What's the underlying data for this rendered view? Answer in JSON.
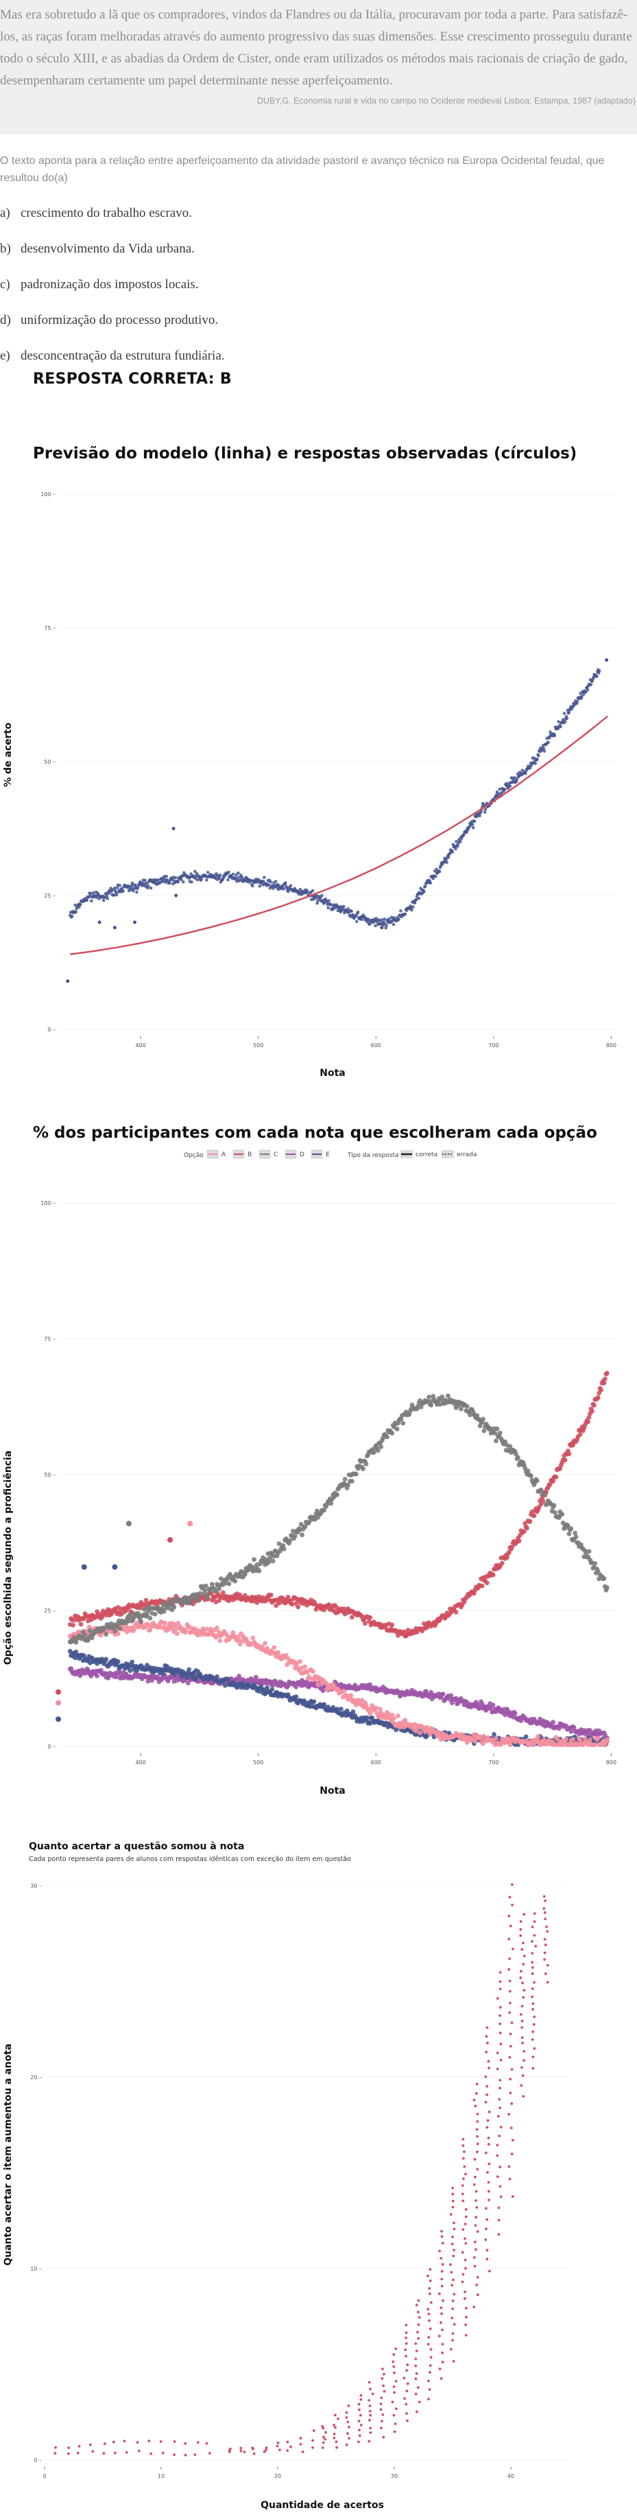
{
  "question": {
    "quote": "Mas era sobretudo a lã que os compradores, vindos da Flandres ou da Itália, procuravam por toda a parte. Para satisfazê-los, as raças foram melhoradas através do aumento progressivo das suas dimensões. Esse crescimento prosseguiu durante todo o século XIII, e as abadias da Ordem de Cister, onde eram utilizados os métodos mais racionais de criação de gado, desempenharam certamente um papel determinante nesse aperfeiçoamento.",
    "source": "DUBY,G. Economia rural e vida no campo no Ocidente medieval Lisboa: Estampa, 1987 (adaptado)",
    "stem": "O texto aponta para a relação entre aperfeiçoamento da atividade pastoril e avanço técnico na Europa Ocidental feudal, que resultou do(a)",
    "options": [
      {
        "letter": "a)",
        "text": "crescimento do trabalho escravo."
      },
      {
        "letter": "b)",
        "text": "desenvolvimento da Vida urbana."
      },
      {
        "letter": "c)",
        "text": "padronização dos impostos locais."
      },
      {
        "letter": "d)",
        "text": "uniformização do processo produtivo."
      },
      {
        "letter": "e)",
        "text": "desconcentração da estrutura fundiária."
      }
    ],
    "answer": "RESPOSTA CORRETA: B"
  },
  "colors": {
    "A": "#f4909f",
    "B": "#d0505f",
    "C": "#7c7c7c",
    "D": "#9d56a8",
    "E": "#46568f",
    "observed": "#46568f",
    "model_line": "#d0505f"
  },
  "chart_data": [
    {
      "type": "scatter",
      "title": "Previsão do modelo (linha) e respostas observadas (círculos)",
      "xlabel": "Nota",
      "ylabel": "% de acerto",
      "xlim": [
        330,
        805
      ],
      "ylim": [
        0,
        100
      ],
      "xticks": [
        400,
        500,
        600,
        700,
        800
      ],
      "yticks": [
        0,
        25,
        50,
        75,
        100
      ],
      "ytick_labels": [
        "0 –",
        "25 –",
        "50 –",
        "75 –",
        "100 –"
      ],
      "observed_points": [
        [
          338,
          9
        ],
        [
          340,
          21
        ],
        [
          350,
          24
        ],
        [
          360,
          25
        ],
        [
          370,
          25
        ],
        [
          380,
          26
        ],
        [
          390,
          26.5
        ],
        [
          400,
          27
        ],
        [
          410,
          27.5
        ],
        [
          420,
          28
        ],
        [
          430,
          28
        ],
        [
          440,
          28.5
        ],
        [
          450,
          28.5
        ],
        [
          460,
          28.5
        ],
        [
          470,
          28.5
        ],
        [
          480,
          28.5
        ],
        [
          490,
          28
        ],
        [
          500,
          27.5
        ],
        [
          510,
          27
        ],
        [
          520,
          26.5
        ],
        [
          530,
          26
        ],
        [
          540,
          25.5
        ],
        [
          550,
          24.5
        ],
        [
          560,
          23.5
        ],
        [
          570,
          22.5
        ],
        [
          580,
          21.5
        ],
        [
          590,
          20.5
        ],
        [
          600,
          20
        ],
        [
          610,
          20
        ],
        [
          620,
          21
        ],
        [
          630,
          23
        ],
        [
          640,
          26
        ],
        [
          650,
          29
        ],
        [
          660,
          32
        ],
        [
          670,
          35
        ],
        [
          680,
          38
        ],
        [
          690,
          41
        ],
        [
          700,
          43
        ],
        [
          710,
          45
        ],
        [
          720,
          47
        ],
        [
          730,
          49
        ],
        [
          740,
          52
        ],
        [
          750,
          55
        ],
        [
          760,
          58
        ],
        [
          796,
          69
        ],
        [
          365,
          20
        ],
        [
          378,
          19
        ],
        [
          395,
          20
        ],
        [
          428,
          37.5
        ],
        [
          430,
          25
        ],
        [
          570,
          22
        ],
        [
          605,
          19
        ]
      ],
      "model_curve": [
        [
          340,
          14
        ],
        [
          360,
          14.6
        ],
        [
          380,
          15.3
        ],
        [
          400,
          16.1
        ],
        [
          420,
          17
        ],
        [
          440,
          18
        ],
        [
          460,
          19.1
        ],
        [
          480,
          20.3
        ],
        [
          500,
          21.6
        ],
        [
          520,
          23
        ],
        [
          540,
          24.6
        ],
        [
          560,
          26.3
        ],
        [
          580,
          28.1
        ],
        [
          600,
          30.1
        ],
        [
          620,
          32.3
        ],
        [
          640,
          34.6
        ],
        [
          660,
          37.1
        ],
        [
          680,
          39.8
        ],
        [
          700,
          42.6
        ],
        [
          720,
          45.6
        ],
        [
          740,
          48.8
        ],
        [
          760,
          52.1
        ],
        [
          780,
          55.5
        ],
        [
          797,
          58.5
        ]
      ]
    },
    {
      "type": "scatter",
      "title": "% dos participantes com cada nota que escolheram cada opção",
      "xlabel": "Nota",
      "ylabel": "Opção escolhida segundo a proficiência",
      "xlim": [
        330,
        805
      ],
      "ylim": [
        0,
        100
      ],
      "xticks": [
        400,
        500,
        600,
        700,
        800
      ],
      "yticks": [
        0,
        25,
        50,
        75,
        100
      ],
      "ytick_labels": [
        "0 –",
        "25 –",
        "50 –",
        "75 –",
        "100 –"
      ],
      "legend": {
        "option_title": "Opção",
        "option_labels": [
          "A",
          "B",
          "C",
          "D",
          "E"
        ],
        "type_title": "Tipo da resposta",
        "type_labels": [
          "correta",
          "errada"
        ]
      },
      "x": [
        340,
        360,
        380,
        400,
        420,
        440,
        460,
        480,
        500,
        520,
        540,
        560,
        580,
        600,
        620,
        640,
        660,
        680,
        700,
        720,
        740,
        760,
        780,
        797
      ],
      "series": [
        {
          "name": "A",
          "values": [
            20,
            21,
            21.5,
            22,
            22,
            21.5,
            21,
            20,
            18.5,
            16.5,
            14,
            11,
            8.5,
            6.5,
            4.5,
            3,
            2,
            1.5,
            1,
            1,
            0.8,
            0.5,
            0.5,
            0.5
          ]
        },
        {
          "name": "B",
          "values": [
            23,
            24,
            25,
            26,
            26.5,
            27,
            27.5,
            27.5,
            27,
            27,
            26.5,
            25.5,
            24.5,
            22.5,
            21,
            21.5,
            24,
            28,
            32,
            38,
            45,
            53,
            60,
            69
          ]
        },
        {
          "name": "C",
          "values": [
            19,
            21,
            22.5,
            24,
            25.5,
            27,
            29,
            31,
            33.5,
            36.5,
            40.5,
            45,
            50,
            55,
            60,
            63.5,
            64,
            61.5,
            58,
            53,
            47,
            41,
            35,
            29
          ]
        },
        {
          "name": "D",
          "values": [
            14,
            13.5,
            13,
            13,
            12.5,
            12.5,
            12,
            12,
            12,
            11.5,
            11.5,
            11,
            11,
            10.5,
            10,
            9.5,
            9,
            8,
            7,
            5.5,
            4.5,
            3.5,
            2.5,
            2
          ]
        },
        {
          "name": "E",
          "values": [
            17,
            16,
            15,
            14.5,
            14,
            13.5,
            12.5,
            11.5,
            10.5,
            9.5,
            8,
            7,
            5.5,
            4.5,
            3.5,
            2.5,
            2,
            1.5,
            1.2,
            1,
            1,
            1,
            1,
            1
          ]
        }
      ],
      "outliers": [
        {
          "series": "C",
          "x": 390,
          "y": 41
        },
        {
          "series": "E",
          "x": 378,
          "y": 33
        },
        {
          "series": "B",
          "x": 425,
          "y": 38
        },
        {
          "series": "A",
          "x": 442,
          "y": 41
        },
        {
          "series": "E",
          "x": 352,
          "y": 33
        },
        {
          "series": "B",
          "x": 330,
          "y": 10
        },
        {
          "series": "E",
          "x": 330,
          "y": 5
        },
        {
          "series": "A",
          "x": 330,
          "y": 8
        }
      ]
    },
    {
      "type": "scatter",
      "title": "Quanto acertar a questão somou à nota",
      "subtitle": "Cada ponto representa pares de alunos com respostas idênticas com exceção do item em questão",
      "xlabel": "Quantidade de acertos",
      "ylabel": "Quanto acertar o item aumentou a anota",
      "xlim": [
        0,
        45
      ],
      "ylim": [
        0,
        31
      ],
      "xticks": [
        0,
        10,
        20,
        30,
        40
      ],
      "yticks": [
        0,
        10,
        20,
        30
      ],
      "ytick_labels": [
        "0 –",
        "10 –",
        "20 –",
        "30 –"
      ],
      "bands": [
        {
          "x": 1,
          "ymin": 0.3,
          "ymax": 0.6
        },
        {
          "x": 2,
          "ymin": 0.3,
          "ymax": 0.7
        },
        {
          "x": 3,
          "ymin": 0.3,
          "ymax": 0.7
        },
        {
          "x": 4,
          "ymin": 0.4,
          "ymax": 0.8
        },
        {
          "x": 5,
          "ymin": 0.4,
          "ymax": 0.8
        },
        {
          "x": 6,
          "ymin": 0.4,
          "ymax": 0.9
        },
        {
          "x": 7,
          "ymin": 0.4,
          "ymax": 1.0
        },
        {
          "x": 8,
          "ymin": 0.4,
          "ymax": 1.0
        },
        {
          "x": 9,
          "ymin": 0.3,
          "ymax": 1.0
        },
        {
          "x": 10,
          "ymin": 0.3,
          "ymax": 1.0
        },
        {
          "x": 11,
          "ymin": 0.3,
          "ymax": 1.0
        },
        {
          "x": 12,
          "ymin": 0.3,
          "ymax": 0.9
        },
        {
          "x": 13,
          "ymin": 0.3,
          "ymax": 0.9
        },
        {
          "x": 14,
          "ymin": 0.3,
          "ymax": 0.8
        },
        {
          "x": 16,
          "ymin": 0.4,
          "ymax": 0.6
        },
        {
          "x": 17,
          "ymin": 0.4,
          "ymax": 0.6
        },
        {
          "x": 18,
          "ymin": 0.4,
          "ymax": 0.7
        },
        {
          "x": 19,
          "ymin": 0.4,
          "ymax": 0.7
        },
        {
          "x": 20,
          "ymin": 0.5,
          "ymax": 0.9
        },
        {
          "x": 21,
          "ymin": 0.5,
          "ymax": 1.0
        },
        {
          "x": 22,
          "ymin": 0.5,
          "ymax": 1.2
        },
        {
          "x": 23,
          "ymin": 0.6,
          "ymax": 1.5
        },
        {
          "x": 24,
          "ymin": 0.6,
          "ymax": 1.8
        },
        {
          "x": 25,
          "ymin": 0.6,
          "ymax": 2.3
        },
        {
          "x": 26,
          "ymin": 0.8,
          "ymax": 2.8
        },
        {
          "x": 27,
          "ymin": 0.9,
          "ymax": 3.4
        },
        {
          "x": 28,
          "ymin": 1.0,
          "ymax": 4.0
        },
        {
          "x": 29,
          "ymin": 1.2,
          "ymax": 4.8
        },
        {
          "x": 30,
          "ymin": 1.5,
          "ymax": 5.8
        },
        {
          "x": 31,
          "ymin": 2.0,
          "ymax": 7.0
        },
        {
          "x": 32,
          "ymin": 2.5,
          "ymax": 8.4
        },
        {
          "x": 33,
          "ymin": 3.2,
          "ymax": 10.0
        },
        {
          "x": 34,
          "ymin": 4.2,
          "ymax": 12.0
        },
        {
          "x": 35,
          "ymin": 5.2,
          "ymax": 14.2
        },
        {
          "x": 36,
          "ymin": 6.5,
          "ymax": 16.8
        },
        {
          "x": 37,
          "ymin": 8.0,
          "ymax": 19.6
        },
        {
          "x": 38,
          "ymin": 9.8,
          "ymax": 22.6
        },
        {
          "x": 39,
          "ymin": 11.8,
          "ymax": 25.5
        },
        {
          "x": 40,
          "ymin": 13.8,
          "ymax": 30.0
        },
        {
          "x": 41,
          "ymin": 19.0,
          "ymax": 28.5
        },
        {
          "x": 42,
          "ymin": 20.5,
          "ymax": 28.5
        },
        {
          "x": 43,
          "ymin": 25.0,
          "ymax": 29.5
        }
      ]
    }
  ]
}
